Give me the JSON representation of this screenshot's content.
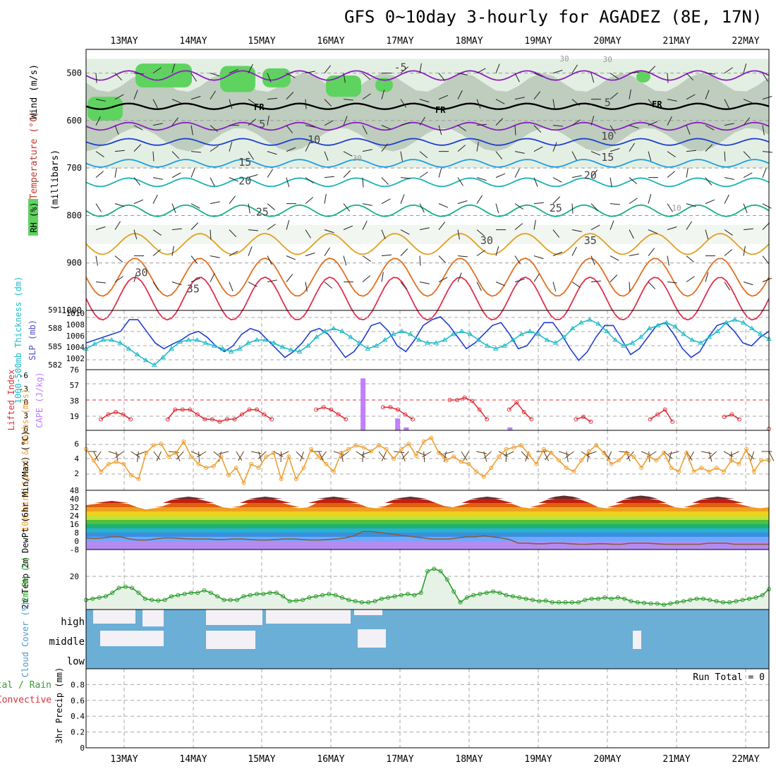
{
  "title": "GFS 0~10day 3-hourly for AGADEZ (8E, 17N)",
  "dates": [
    "13MAY",
    "14MAY",
    "15MAY",
    "16MAY",
    "17MAY",
    "18MAY",
    "19MAY",
    "20MAY",
    "21MAY",
    "22MAY"
  ],
  "colors": {
    "rh_green": "#5fd35f",
    "cloud": "#6baed6",
    "slp": "#1f3fcf",
    "thickness": "#1fbcc8",
    "lifted": "#e0303a",
    "cape": "#c080ff",
    "wind": "#f0a030",
    "rh2m": "#2a9d2a"
  },
  "chart_data": [
    {
      "type": "contour",
      "panel": "upper-air",
      "ylabel_parts": [
        "RH (%)",
        "Temperature (°C)",
        "Wind (m/s)",
        "(millibars)"
      ],
      "yticks": [
        500,
        600,
        700,
        800,
        900,
        1000
      ],
      "ylim": [
        450,
        1000
      ],
      "freezing_label": "FR",
      "temperature_labels": [
        {
          "text": "-5",
          "x": "17MAY",
          "p": 495
        },
        {
          "text": "5",
          "x": "20MAY",
          "p": 570
        },
        {
          "text": "5",
          "x": "15MAY",
          "p": 615
        },
        {
          "text": "10",
          "x": "15MAY18",
          "p": 648
        },
        {
          "text": "10",
          "x": "20MAY",
          "p": 640
        },
        {
          "text": "15",
          "x": "14MAY18",
          "p": 695
        },
        {
          "text": "15",
          "x": "20MAY",
          "p": 685
        },
        {
          "text": "20",
          "x": "14MAY18",
          "p": 735
        },
        {
          "text": "20",
          "x": "19MAY18",
          "p": 723
        },
        {
          "text": "25",
          "x": "15MAY",
          "p": 800
        },
        {
          "text": "25",
          "x": "19MAY06",
          "p": 792
        },
        {
          "text": "30",
          "x": "13MAY06",
          "p": 928
        },
        {
          "text": "30",
          "x": "18MAY06",
          "p": 860
        },
        {
          "text": "35",
          "x": "14MAY",
          "p": 962
        },
        {
          "text": "35",
          "x": "19MAY18",
          "p": 860
        }
      ],
      "rh_labels": [
        {
          "text": "30",
          "x": "19MAY09",
          "p": 475
        },
        {
          "text": "30",
          "x": "20MAY",
          "p": 477
        },
        {
          "text": "30",
          "x": "16MAY09",
          "p": 685
        },
        {
          "text": "10",
          "x": "21MAY",
          "p": 790
        }
      ]
    },
    {
      "type": "line",
      "panel": "pressure",
      "ylabel_left": "1000-500mb Thickness (dm)",
      "ylabel_right": "SLP (mb)",
      "thickness_ticks": [
        582,
        585,
        588,
        591
      ],
      "slp_ticks": [
        1002,
        1004,
        1006,
        1008,
        1010
      ],
      "slp_ylim": [
        1002,
        1011
      ],
      "thickness_ylim": [
        582,
        591
      ],
      "series": [
        {
          "values": [
            1006,
            1006.5,
            1007,
            1007.5,
            1008,
            1010,
            1010,
            1008,
            1006,
            1005,
            1005.8,
            1006.5,
            1007.5,
            1008,
            1007,
            1005.5,
            1004.5,
            1005.5,
            1007.5,
            1008.5,
            1008,
            1006.5,
            1005,
            1003.5,
            1004.5,
            1006,
            1008,
            1008.5,
            1007.5,
            1005.5,
            1003.5,
            1004.5,
            1006.5,
            1009,
            1009.5,
            1008,
            1005.5,
            1004.5,
            1006.5,
            1009,
            1010,
            1010.5,
            1009,
            1007,
            1005,
            1006,
            1007.5,
            1009,
            1009.5,
            1007.5,
            1005,
            1005.5,
            1007.5,
            1009.5,
            1009.5,
            1007.5,
            1005,
            1003,
            1004.5,
            1007,
            1009,
            1009,
            1006.5,
            1004,
            1005,
            1007,
            1009,
            1009.5,
            1007.5,
            1005,
            1003.5,
            1004.5,
            1007,
            1009,
            1009.5,
            1008,
            1006,
            1005.5,
            1007,
            1008
          ]
        },
        {
          "values": [
            585,
            585.8,
            586.5,
            586.5,
            586,
            585,
            584,
            583,
            582.2,
            583.5,
            585,
            586.2,
            586.5,
            586.5,
            586,
            585.5,
            585,
            584.5,
            585,
            586,
            586.5,
            586.5,
            586,
            585.3,
            584.8,
            584.5,
            585.5,
            587,
            588,
            588.5,
            588,
            587,
            586,
            585,
            585.5,
            586.5,
            587.5,
            588,
            587.5,
            586.5,
            586,
            586,
            586.5,
            587.5,
            588,
            587.5,
            586.5,
            585.5,
            585,
            585.5,
            586.5,
            587.5,
            588,
            587.5,
            586.5,
            586,
            587,
            588.5,
            589.5,
            590,
            589.3,
            588,
            586.5,
            585.5,
            586,
            587,
            588.5,
            589,
            589.5,
            588.8,
            587.5,
            586.5,
            586,
            587,
            588,
            589.5,
            590,
            589.5,
            588.5,
            587.5,
            586.7
          ]
        }
      ]
    },
    {
      "type": "line",
      "panel": "stability",
      "ylabel_left": "Lifted Index",
      "ylabel_right": "CAPE (J/kg)",
      "li_ticks": [
        -6,
        -3,
        0,
        3,
        6
      ],
      "cape_ticks": [
        19,
        38,
        57,
        76
      ],
      "li_ylim": [
        6,
        -6
      ],
      "cape_ylim": [
        0,
        76
      ],
      "series": [
        {
          "values": [
            null,
            null,
            4,
            3,
            2.5,
            3,
            4,
            null,
            null,
            null,
            null,
            4,
            2,
            2,
            2,
            3,
            4,
            4,
            4.5,
            4,
            4,
            3,
            2,
            2,
            3,
            4,
            null,
            null,
            null,
            null,
            null,
            2,
            1.5,
            2,
            3,
            4,
            null,
            null,
            null,
            null,
            1.5,
            1.5,
            2,
            3,
            4,
            null,
            null,
            null,
            null,
            0,
            0,
            -0.5,
            0.2,
            2,
            4,
            null,
            null,
            2,
            0.5,
            2.5,
            4,
            null,
            null,
            null,
            null,
            null,
            4,
            3.5,
            4.5,
            null,
            null,
            null,
            null,
            null,
            null,
            null,
            4,
            3,
            2,
            4.5,
            null,
            null,
            null,
            null,
            null,
            null,
            3.5,
            3,
            4,
            null,
            null,
            null,
            6
          ]
        },
        {
          "values": [
            0,
            0,
            0,
            0,
            0,
            0,
            0,
            0,
            0,
            0,
            0,
            0,
            0,
            0,
            0,
            0,
            0,
            0,
            0,
            0,
            0,
            0,
            0,
            0,
            0,
            0,
            0,
            0,
            0,
            0,
            0,
            0,
            70,
            0,
            0,
            0,
            16,
            4,
            0,
            0,
            0,
            0,
            0,
            0,
            0,
            0,
            0,
            0,
            0,
            4,
            0,
            0,
            0,
            0,
            0,
            0,
            0,
            0,
            0,
            0,
            0,
            0,
            0,
            0,
            0,
            0,
            0,
            0,
            0,
            0,
            0,
            0,
            0,
            0,
            0,
            0,
            0,
            0,
            0,
            0
          ]
        }
      ]
    },
    {
      "type": "line",
      "panel": "wind10m",
      "ylabel": "10m Wind Speed & Barbs (m/s)",
      "yticks": [
        2,
        4,
        6
      ],
      "ylim": [
        0,
        8
      ],
      "series": [
        {
          "values": [
            5.5,
            4,
            2.5,
            3.5,
            3.8,
            3.5,
            2,
            1.5,
            5,
            6,
            6.2,
            4.5,
            5,
            6.5,
            4.5,
            3.5,
            3,
            3.2,
            4.5,
            2,
            3,
            1,
            3.5,
            3,
            4.5,
            5,
            1.5,
            4.5,
            1.5,
            3,
            5.5,
            4.5,
            3.5,
            2.5,
            5,
            5.5,
            6,
            5.7,
            5.2,
            6,
            5.5,
            4.2,
            5.5,
            6.2,
            4.6,
            6.5,
            7,
            5,
            4,
            4.5,
            3.8,
            3.5,
            2.5,
            1.8,
            3,
            4.5,
            5.5,
            5.7,
            6,
            4.8,
            3.5,
            5.5,
            5,
            4,
            3,
            2.5,
            4,
            5.2,
            6,
            5,
            3.5,
            4,
            5,
            4.5,
            3,
            4.5,
            4,
            5,
            3,
            2.5,
            5,
            2.5,
            3,
            2.5,
            3,
            2.5,
            4,
            3.5,
            5.5,
            2.5,
            4,
            4
          ]
        }
      ]
    },
    {
      "type": "area",
      "panel": "temp2m",
      "ylabel": "2m Temp 2m DewPt (6hr Min/Max) (°C)",
      "yticks": [
        -8,
        0,
        8,
        16,
        24,
        32,
        40,
        48
      ],
      "ylim": [
        -8,
        48
      ],
      "series": [
        {
          "values": [
            34,
            35,
            37,
            38,
            37,
            35,
            32,
            30,
            31,
            33,
            39,
            41,
            42,
            41,
            38,
            35,
            32,
            31,
            33,
            39,
            41,
            42,
            41,
            38,
            34,
            31,
            32,
            38,
            41,
            42,
            41,
            38,
            35,
            32,
            31,
            33,
            39,
            41,
            42,
            41,
            39,
            36,
            33,
            32,
            34,
            39,
            41,
            42,
            41,
            38,
            35,
            32,
            31,
            34,
            39,
            42,
            43,
            42,
            39,
            36,
            32,
            31,
            34,
            39,
            42,
            43,
            42,
            39,
            35,
            32,
            31,
            34,
            39,
            41,
            42,
            41,
            38,
            34,
            32,
            31,
            32
          ]
        },
        {
          "values": [
            3,
            2.5,
            3,
            4,
            4,
            2,
            1,
            1,
            2,
            3,
            3,
            2.5,
            2,
            2,
            2,
            1.5,
            1.5,
            2,
            2,
            1.5,
            1,
            1,
            1.5,
            2,
            2,
            1.5,
            1,
            1,
            1.5,
            2,
            3,
            5,
            9,
            9,
            8,
            7,
            6,
            5,
            4,
            3,
            2,
            2,
            2,
            3,
            4,
            4,
            5,
            4,
            3,
            1.5,
            -2,
            -2,
            -2.5,
            -2.5,
            -2,
            -2,
            -2.5,
            -3,
            -3,
            -2.5,
            -2.5,
            -3,
            -3,
            -2,
            -2,
            -2,
            -2.5,
            -3,
            -3,
            -3,
            -3,
            -3,
            -2,
            -2,
            -2,
            -3,
            -3,
            -3,
            -3,
            -3
          ]
        }
      ]
    },
    {
      "type": "area",
      "panel": "rh2m",
      "ylabel": "2m RH (%)",
      "yticks": [
        20
      ],
      "ylim": [
        0,
        50
      ],
      "series": [
        {
          "values": [
            8,
            9,
            10,
            11,
            14,
            18,
            19,
            18,
            14,
            9,
            8,
            7.5,
            8,
            11,
            12,
            13,
            14,
            14,
            16,
            14,
            11,
            8,
            8,
            8,
            11,
            12,
            13,
            13,
            14,
            14,
            11,
            7,
            7.5,
            8,
            10,
            11,
            12,
            13,
            12,
            10,
            8,
            7,
            6,
            6,
            7,
            9,
            10,
            11,
            12,
            13,
            12,
            14,
            32,
            34,
            32,
            25,
            15,
            6,
            10,
            12,
            13,
            14,
            15,
            14,
            12,
            11,
            10,
            9,
            8,
            7,
            7.5,
            6,
            6,
            6,
            6,
            6,
            8,
            9,
            9,
            10,
            9,
            10,
            9,
            7,
            6,
            5.5,
            5,
            5,
            4,
            5,
            6,
            7,
            8,
            9,
            9,
            8,
            7,
            6,
            6,
            7,
            8,
            9,
            10,
            12,
            17
          ]
        }
      ]
    },
    {
      "type": "bar",
      "panel": "cloud",
      "ylabel": "Cloud Cover (%)",
      "layer_labels": [
        "high",
        "middle",
        "low"
      ]
    },
    {
      "type": "bar",
      "panel": "precip",
      "ylabel_parts": [
        "Total / Rain",
        "Convective",
        "3hr Precip (mm)"
      ],
      "yticks": [
        0,
        0.2,
        0.4,
        0.6,
        0.8
      ],
      "ylim": [
        0,
        1
      ],
      "run_total": "Run Total = 0"
    }
  ]
}
